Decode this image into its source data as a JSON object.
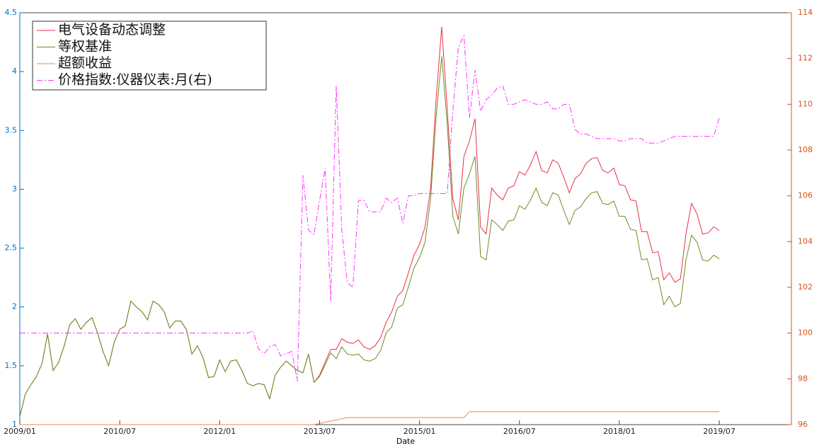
{
  "chart_data": {
    "type": "line",
    "x_label": "Date",
    "x": [
      "2009/01",
      "2009/02",
      "2009/03",
      "2009/04",
      "2009/05",
      "2009/06",
      "2009/07",
      "2009/08",
      "2009/09",
      "2009/10",
      "2009/11",
      "2009/12",
      "2010/01",
      "2010/02",
      "2010/03",
      "2010/04",
      "2010/05",
      "2010/06",
      "2010/07",
      "2010/08",
      "2010/09",
      "2010/10",
      "2010/11",
      "2010/12",
      "2011/01",
      "2011/02",
      "2011/03",
      "2011/04",
      "2011/05",
      "2011/06",
      "2011/07",
      "2011/08",
      "2011/09",
      "2011/10",
      "2011/11",
      "2011/12",
      "2012/01",
      "2012/02",
      "2012/03",
      "2012/04",
      "2012/05",
      "2012/06",
      "2012/07",
      "2012/08",
      "2012/09",
      "2012/10",
      "2012/11",
      "2012/12",
      "2013/01",
      "2013/02",
      "2013/03",
      "2013/04",
      "2013/05",
      "2013/06",
      "2013/07",
      "2013/08",
      "2013/09",
      "2013/10",
      "2013/11",
      "2013/12",
      "2014/01",
      "2014/02",
      "2014/03",
      "2014/04",
      "2014/05",
      "2014/06",
      "2014/07",
      "2014/08",
      "2014/09",
      "2014/10",
      "2014/11",
      "2014/12",
      "2015/01",
      "2015/02",
      "2015/03",
      "2015/04",
      "2015/05",
      "2015/06",
      "2015/07",
      "2015/08",
      "2015/09",
      "2015/10",
      "2015/11",
      "2015/12",
      "2016/01",
      "2016/02",
      "2016/03",
      "2016/04",
      "2016/05",
      "2016/06",
      "2016/07",
      "2016/08",
      "2016/09",
      "2016/10",
      "2016/11",
      "2016/12",
      "2017/01",
      "2017/02",
      "2017/03",
      "2017/04",
      "2017/05",
      "2017/06",
      "2017/07",
      "2017/08",
      "2017/09",
      "2017/10",
      "2017/11",
      "2017/12",
      "2018/01",
      "2018/02",
      "2018/03",
      "2018/04",
      "2018/05",
      "2018/06",
      "2018/07",
      "2018/08",
      "2018/09",
      "2018/10",
      "2018/11",
      "2018/12",
      "2019/01",
      "2019/02",
      "2019/03",
      "2019/04",
      "2019/05",
      "2019/06",
      "2019/07"
    ],
    "xlim": [
      "2009/01",
      "2020/08"
    ],
    "xticks": [
      "2009/01",
      "2010/07",
      "2012/01",
      "2013/07",
      "2015/01",
      "2016/07",
      "2018/01",
      "2019/07"
    ],
    "ylim": [
      1,
      4.5
    ],
    "yticks": [
      1,
      1.5,
      2,
      2.5,
      3,
      3.5,
      4,
      4.5
    ],
    "y2lim": [
      96,
      114
    ],
    "y2ticks": [
      96,
      98,
      100,
      102,
      104,
      106,
      108,
      110,
      112,
      114
    ],
    "legend": "upper left",
    "series": [
      {
        "name": "电气设备动态调整",
        "color": "#e8304a",
        "values": [
          1.07,
          1.26,
          1.34,
          1.41,
          1.52,
          1.77,
          1.46,
          1.53,
          1.67,
          1.85,
          1.9,
          1.81,
          1.87,
          1.91,
          1.78,
          1.62,
          1.5,
          1.7,
          1.81,
          1.84,
          2.05,
          2.0,
          1.96,
          1.89,
          2.05,
          2.02,
          1.96,
          1.82,
          1.88,
          1.88,
          1.81,
          1.6,
          1.67,
          1.57,
          1.4,
          1.41,
          1.55,
          1.45,
          1.54,
          1.55,
          1.46,
          1.35,
          1.33,
          1.35,
          1.34,
          1.22,
          1.42,
          1.49,
          1.54,
          1.5,
          1.46,
          1.44,
          1.6,
          1.36,
          1.42,
          1.53,
          1.64,
          1.64,
          1.73,
          1.7,
          1.69,
          1.72,
          1.66,
          1.64,
          1.67,
          1.74,
          1.87,
          1.96,
          2.09,
          2.14,
          2.29,
          2.44,
          2.53,
          2.68,
          3.01,
          3.77,
          4.38,
          3.68,
          2.92,
          2.74,
          3.28,
          3.41,
          3.6,
          2.68,
          2.62,
          3.01,
          2.95,
          2.91,
          3.01,
          3.03,
          3.15,
          3.12,
          3.21,
          3.32,
          3.16,
          3.14,
          3.25,
          3.22,
          3.1,
          2.97,
          3.09,
          3.13,
          3.22,
          3.26,
          3.27,
          3.16,
          3.14,
          3.18,
          3.04,
          3.03,
          2.91,
          2.9,
          2.64,
          2.64,
          2.46,
          2.47,
          2.23,
          2.29,
          2.21,
          2.24,
          2.62,
          2.88,
          2.79,
          2.62,
          2.63,
          2.68,
          2.65
        ]
      },
      {
        "name": "等权基准",
        "color": "#6b8e23",
        "values": [
          1.07,
          1.26,
          1.34,
          1.41,
          1.52,
          1.77,
          1.46,
          1.53,
          1.67,
          1.85,
          1.9,
          1.81,
          1.87,
          1.91,
          1.78,
          1.62,
          1.5,
          1.7,
          1.81,
          1.84,
          2.05,
          2.0,
          1.96,
          1.89,
          2.05,
          2.02,
          1.96,
          1.82,
          1.88,
          1.88,
          1.81,
          1.6,
          1.67,
          1.57,
          1.4,
          1.41,
          1.55,
          1.45,
          1.54,
          1.55,
          1.46,
          1.35,
          1.33,
          1.35,
          1.34,
          1.22,
          1.42,
          1.49,
          1.54,
          1.5,
          1.46,
          1.44,
          1.6,
          1.36,
          1.41,
          1.51,
          1.61,
          1.56,
          1.66,
          1.6,
          1.59,
          1.6,
          1.55,
          1.54,
          1.56,
          1.63,
          1.78,
          1.83,
          1.99,
          2.02,
          2.17,
          2.33,
          2.42,
          2.55,
          2.92,
          3.62,
          4.13,
          3.55,
          2.77,
          2.62,
          3.01,
          3.13,
          3.28,
          2.43,
          2.4,
          2.74,
          2.7,
          2.65,
          2.73,
          2.74,
          2.86,
          2.83,
          2.91,
          3.01,
          2.89,
          2.86,
          2.97,
          2.95,
          2.82,
          2.7,
          2.82,
          2.85,
          2.92,
          2.97,
          2.98,
          2.88,
          2.87,
          2.9,
          2.77,
          2.77,
          2.66,
          2.65,
          2.4,
          2.41,
          2.23,
          2.25,
          2.02,
          2.09,
          2.0,
          2.03,
          2.4,
          2.61,
          2.55,
          2.4,
          2.39,
          2.44,
          2.41
        ]
      },
      {
        "name": "超额收益",
        "color": "#e8884a",
        "values": [
          1,
          1,
          1,
          1,
          1,
          1,
          1,
          1,
          1,
          1,
          1,
          1,
          1,
          1,
          1,
          1,
          1,
          1,
          1,
          1,
          1,
          1,
          1,
          1,
          1,
          1,
          1,
          1,
          1,
          1,
          1,
          1,
          1,
          1,
          1,
          1,
          1,
          1,
          1,
          1,
          1,
          1,
          1,
          1,
          1,
          1,
          1,
          1,
          1,
          1,
          1,
          1,
          1,
          1,
          1.01,
          1.02,
          1.03,
          1.04,
          1.05,
          1.06,
          1.06,
          1.06,
          1.06,
          1.06,
          1.06,
          1.06,
          1.06,
          1.06,
          1.06,
          1.06,
          1.06,
          1.06,
          1.06,
          1.06,
          1.06,
          1.06,
          1.06,
          1.06,
          1.06,
          1.06,
          1.06,
          1.11,
          1.11,
          1.11,
          1.11,
          1.11,
          1.11,
          1.11,
          1.11,
          1.11,
          1.11,
          1.11,
          1.11,
          1.11,
          1.11,
          1.11,
          1.11,
          1.11,
          1.11,
          1.11,
          1.11,
          1.11,
          1.11,
          1.11,
          1.11,
          1.11,
          1.11,
          1.11,
          1.11,
          1.11,
          1.11,
          1.11,
          1.11,
          1.11,
          1.11,
          1.11,
          1.11,
          1.11,
          1.11,
          1.11,
          1.11,
          1.11,
          1.11,
          1.11,
          1.11,
          1.11,
          1.11
        ]
      },
      {
        "name": "价格指数:仪器仪表:月(右)",
        "color": "#ff33ff",
        "axis": "y2",
        "dash": "dash-dot",
        "values": [
          100,
          100,
          100,
          100,
          100,
          100,
          100,
          100,
          100,
          100,
          100,
          100,
          100,
          100,
          100,
          100,
          100,
          100,
          100,
          100,
          100,
          100,
          100,
          100,
          100,
          100,
          100,
          100,
          100,
          100,
          100,
          100,
          100,
          100,
          100,
          100,
          100,
          100,
          100,
          100,
          100,
          100,
          100.1,
          99.3,
          99.1,
          99.4,
          99.5,
          99.0,
          99.1,
          99.2,
          97.9,
          106.9,
          104.5,
          104.3,
          105.8,
          107.2,
          101.4,
          110.8,
          104.5,
          102.2,
          102.0,
          105.8,
          105.8,
          105.3,
          105.3,
          105.3,
          105.9,
          105.7,
          105.9,
          104.8,
          106.0,
          106.0,
          106.1,
          106.1,
          106.1,
          106.1,
          106.1,
          106.1,
          109.7,
          112.5,
          113.0,
          109.4,
          111.5,
          109.7,
          110.2,
          110.4,
          110.7,
          110.8,
          110.0,
          110.0,
          110.1,
          110.2,
          110.1,
          110.0,
          110.0,
          110.1,
          109.8,
          109.8,
          110.0,
          110.0,
          108.9,
          108.7,
          108.7,
          108.6,
          108.5,
          108.5,
          108.5,
          108.5,
          108.4,
          108.4,
          108.5,
          108.5,
          108.5,
          108.3,
          108.3,
          108.3,
          108.4,
          108.5,
          108.6,
          108.6,
          108.6,
          108.6,
          108.6,
          108.6,
          108.6,
          108.6,
          109.4
        ]
      }
    ]
  }
}
